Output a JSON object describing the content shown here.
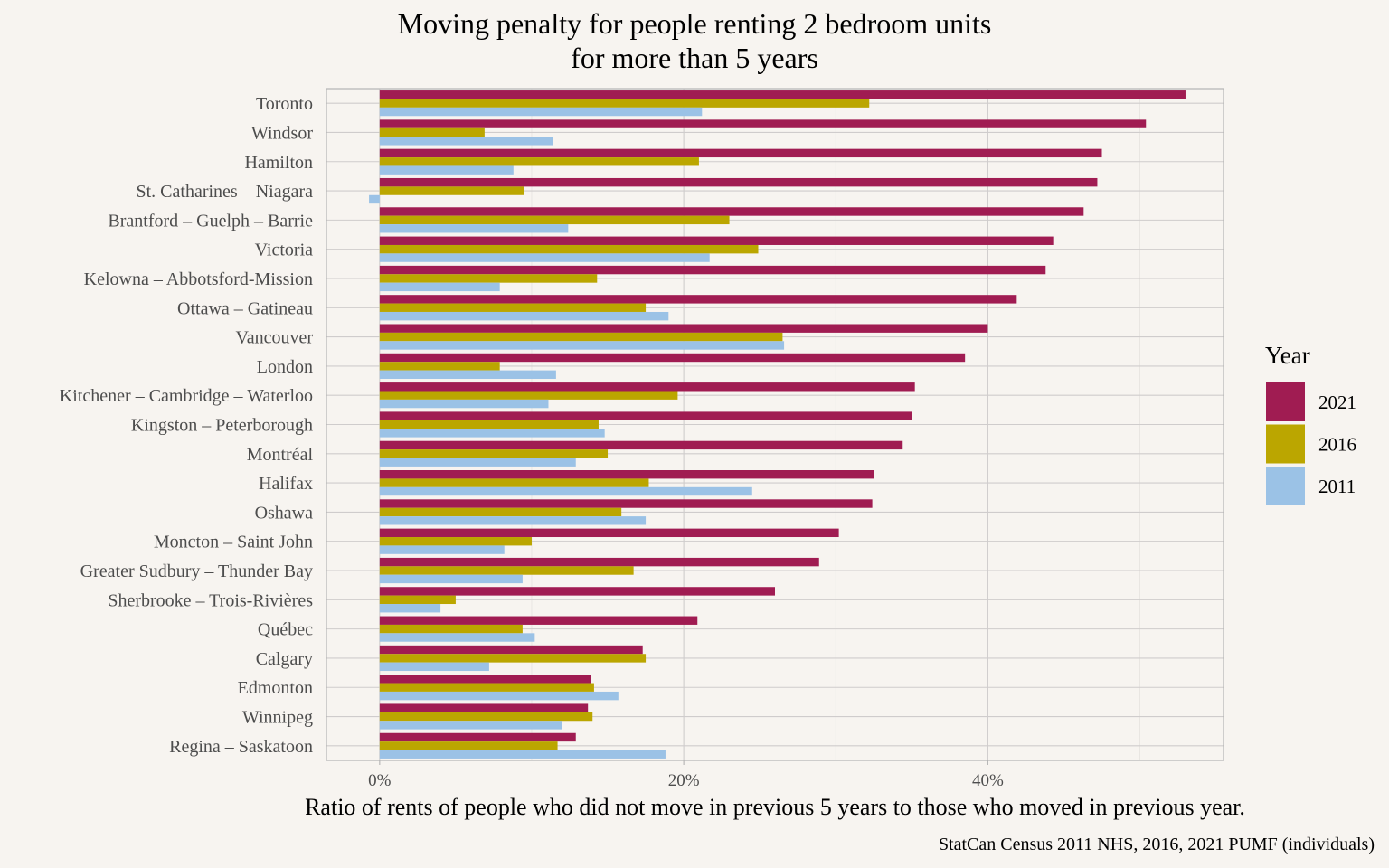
{
  "chart_data": {
    "type": "bar",
    "orientation": "horizontal",
    "title_lines": [
      "Moving penalty for people renting 2 bedroom units",
      "for more than 5 years"
    ],
    "xlabel": "Ratio of rents of people who did not move in previous 5 years to those who moved in previous year.",
    "ylabel": "",
    "caption": "StatCan Census 2011 NHS, 2016, 2021 PUMF (individuals)",
    "xlim": [
      -0.035,
      0.555
    ],
    "x_ticks": [
      0,
      0.2,
      0.4
    ],
    "x_tick_labels": [
      "0%",
      "20%",
      "40%"
    ],
    "grid": true,
    "legend": {
      "title": "Year",
      "position": "right"
    },
    "categories": [
      "Toronto",
      "Windsor",
      "Hamilton",
      "St. Catharines – Niagara",
      "Brantford – Guelph – Barrie",
      "Victoria",
      "Kelowna – Abbotsford-Mission",
      "Ottawa – Gatineau",
      "Vancouver",
      "London",
      "Kitchener – Cambridge – Waterloo",
      "Kingston – Peterborough",
      "Montréal",
      "Halifax",
      "Oshawa",
      "Moncton – Saint John",
      "Greater Sudbury – Thunder Bay",
      "Sherbrooke – Trois-Rivières",
      "Québec",
      "Calgary",
      "Edmonton",
      "Winnipeg",
      "Regina – Saskatoon"
    ],
    "series": [
      {
        "name": "2021",
        "color": "#a01c52",
        "values": [
          0.53,
          0.504,
          0.475,
          0.472,
          0.463,
          0.443,
          0.438,
          0.419,
          0.4,
          0.385,
          0.352,
          0.35,
          0.344,
          0.325,
          0.324,
          0.302,
          0.289,
          0.26,
          0.209,
          0.173,
          0.139,
          0.137,
          0.129
        ]
      },
      {
        "name": "2016",
        "color": "#bba600",
        "values": [
          0.322,
          0.069,
          0.21,
          0.095,
          0.23,
          0.249,
          0.143,
          0.175,
          0.265,
          0.079,
          0.196,
          0.144,
          0.15,
          0.177,
          0.159,
          0.1,
          0.167,
          0.05,
          0.094,
          0.175,
          0.141,
          0.14,
          0.117
        ]
      },
      {
        "name": "2011",
        "color": "#9bc2e6",
        "values": [
          0.212,
          0.114,
          0.088,
          -0.007,
          0.124,
          0.217,
          0.079,
          0.19,
          0.266,
          0.116,
          0.111,
          0.148,
          0.129,
          0.245,
          0.175,
          0.082,
          0.094,
          0.04,
          0.102,
          0.072,
          0.157,
          0.12,
          0.188
        ]
      }
    ]
  }
}
